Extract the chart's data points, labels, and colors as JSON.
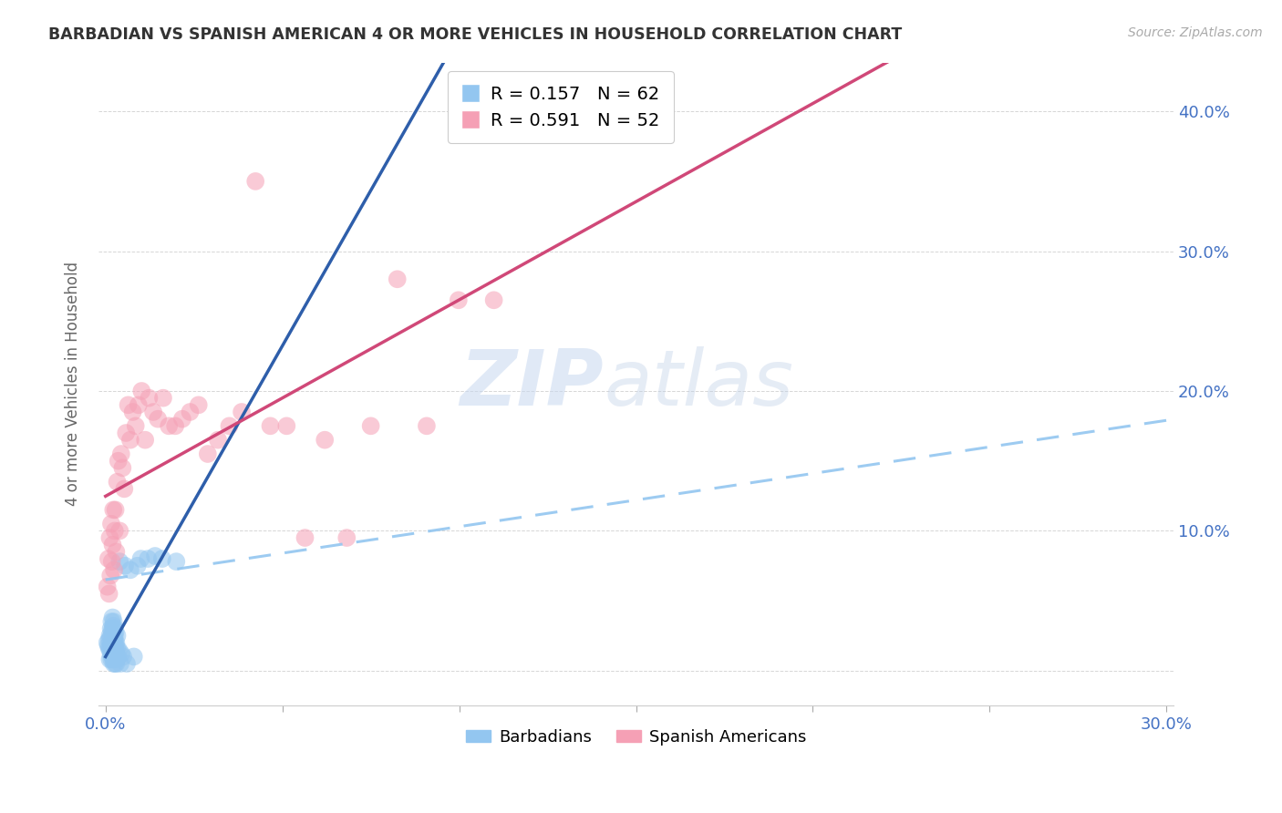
{
  "title": "BARBADIAN VS SPANISH AMERICAN 4 OR MORE VEHICLES IN HOUSEHOLD CORRELATION CHART",
  "source": "Source: ZipAtlas.com",
  "ylabel": "4 or more Vehicles in Household",
  "xlim": [
    -0.002,
    0.302
  ],
  "ylim": [
    -0.025,
    0.435
  ],
  "xticks": [
    0.0,
    0.05,
    0.1,
    0.15,
    0.2,
    0.25,
    0.3
  ],
  "yticks": [
    0.0,
    0.1,
    0.2,
    0.3,
    0.4
  ],
  "ytick_labels_right": [
    "",
    "10.0%",
    "20.0%",
    "30.0%",
    "40.0%"
  ],
  "xtick_labels": [
    "0.0%",
    "",
    "",
    "",
    "",
    "",
    "30.0%"
  ],
  "legend_blue_r": "R = 0.157",
  "legend_blue_n": "N = 62",
  "legend_pink_r": "R = 0.591",
  "legend_pink_n": "N = 52",
  "blue_scatter_color": "#93C6F0",
  "pink_scatter_color": "#F5A0B5",
  "blue_line_color": "#2E5EAA",
  "pink_line_color": "#D04878",
  "blue_dash_color": "#93C6F0",
  "watermark_zip": "ZIP",
  "watermark_atlas": "atlas",
  "barbadians_x": [
    0.0005,
    0.0008,
    0.001,
    0.001,
    0.0012,
    0.0012,
    0.0013,
    0.0015,
    0.0015,
    0.0015,
    0.0015,
    0.0017,
    0.0017,
    0.0018,
    0.0018,
    0.0018,
    0.0019,
    0.0019,
    0.002,
    0.002,
    0.002,
    0.0021,
    0.0021,
    0.0022,
    0.0022,
    0.0022,
    0.0023,
    0.0023,
    0.0023,
    0.0024,
    0.0024,
    0.0025,
    0.0025,
    0.0025,
    0.0026,
    0.0026,
    0.0027,
    0.0027,
    0.0028,
    0.0028,
    0.003,
    0.003,
    0.003,
    0.0032,
    0.0032,
    0.0033,
    0.0035,
    0.0037,
    0.004,
    0.0042,
    0.0045,
    0.005,
    0.0055,
    0.006,
    0.007,
    0.008,
    0.009,
    0.01,
    0.012,
    0.014,
    0.016,
    0.02
  ],
  "barbadians_y": [
    0.02,
    0.018,
    0.022,
    0.016,
    0.025,
    0.008,
    0.015,
    0.03,
    0.012,
    0.018,
    0.024,
    0.035,
    0.008,
    0.014,
    0.02,
    0.028,
    0.01,
    0.022,
    0.03,
    0.016,
    0.038,
    0.012,
    0.02,
    0.032,
    0.008,
    0.016,
    0.025,
    0.035,
    0.005,
    0.015,
    0.022,
    0.03,
    0.01,
    0.018,
    0.012,
    0.025,
    0.005,
    0.02,
    0.015,
    0.028,
    0.005,
    0.012,
    0.02,
    0.008,
    0.016,
    0.025,
    0.01,
    0.015,
    0.078,
    0.005,
    0.012,
    0.01,
    0.075,
    0.005,
    0.072,
    0.01,
    0.075,
    0.08,
    0.08,
    0.082,
    0.08,
    0.078
  ],
  "spanish_x": [
    0.0005,
    0.0008,
    0.001,
    0.0012,
    0.0014,
    0.0016,
    0.0018,
    0.002,
    0.0022,
    0.0024,
    0.0026,
    0.0028,
    0.003,
    0.0033,
    0.0036,
    0.004,
    0.0044,
    0.0048,
    0.0053,
    0.0058,
    0.0064,
    0.007,
    0.0077,
    0.0085,
    0.0093,
    0.0102,
    0.0112,
    0.0123,
    0.0135,
    0.0148,
    0.0163,
    0.0179,
    0.0197,
    0.0217,
    0.0239,
    0.0263,
    0.0289,
    0.0318,
    0.035,
    0.0385,
    0.0424,
    0.0466,
    0.0512,
    0.0564,
    0.062,
    0.0682,
    0.075,
    0.0825,
    0.0908,
    0.0998,
    0.1098,
    0.1208
  ],
  "spanish_y": [
    0.06,
    0.08,
    0.055,
    0.095,
    0.068,
    0.105,
    0.078,
    0.09,
    0.115,
    0.072,
    0.1,
    0.115,
    0.085,
    0.135,
    0.15,
    0.1,
    0.155,
    0.145,
    0.13,
    0.17,
    0.19,
    0.165,
    0.185,
    0.175,
    0.19,
    0.2,
    0.165,
    0.195,
    0.185,
    0.18,
    0.195,
    0.175,
    0.175,
    0.18,
    0.185,
    0.19,
    0.155,
    0.165,
    0.175,
    0.185,
    0.35,
    0.175,
    0.175,
    0.095,
    0.165,
    0.095,
    0.175,
    0.28,
    0.175,
    0.265,
    0.265,
    0.415
  ]
}
